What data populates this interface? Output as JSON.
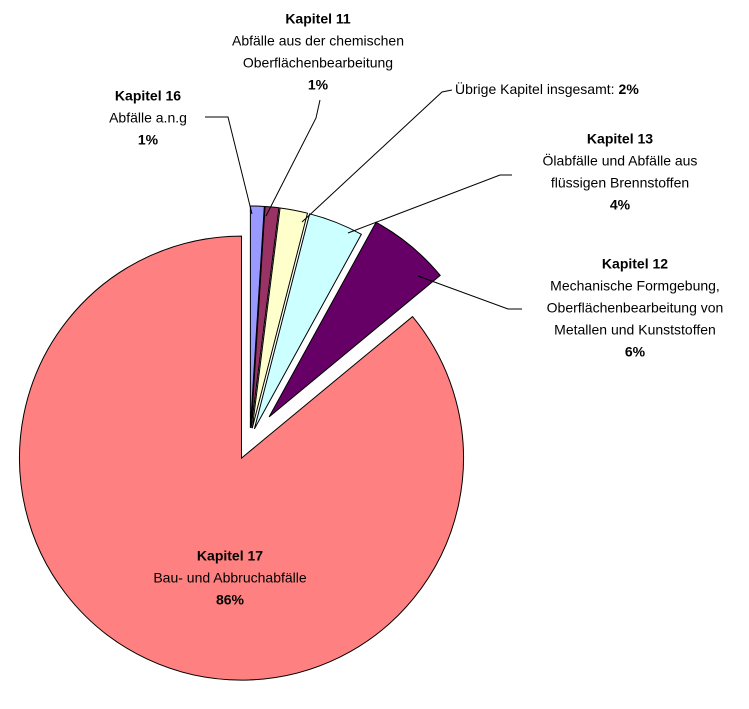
{
  "chart_data": {
    "type": "pie",
    "categories": [
      "Kapitel 16",
      "Kapitel 11",
      "Übrige Kapitel insgesamt:",
      "Kapitel 13",
      "Kapitel 12",
      "Kapitel 17"
    ],
    "descriptions": [
      [
        "Abfälle a.n.g"
      ],
      [
        "Abfälle aus der chemischen",
        "Oberflächenbearbeitung"
      ],
      [],
      [
        "Ölabfälle und Abfälle aus",
        "flüssigen Brennstoffen"
      ],
      [
        "Mechanische Formgebung,",
        "Oberflächenbearbeitung von",
        "Metallen und Kunststoffen"
      ],
      [
        "Bau- und Abbruchabfälle"
      ]
    ],
    "values": [
      1,
      1,
      2,
      4,
      6,
      86
    ],
    "value_labels": [
      "1%",
      "1%",
      "2%",
      "4%",
      "6%",
      "86%"
    ],
    "colors": [
      "#9999ff",
      "#993366",
      "#ffffcc",
      "#ccffff",
      "#660066",
      "#ff8080"
    ]
  }
}
